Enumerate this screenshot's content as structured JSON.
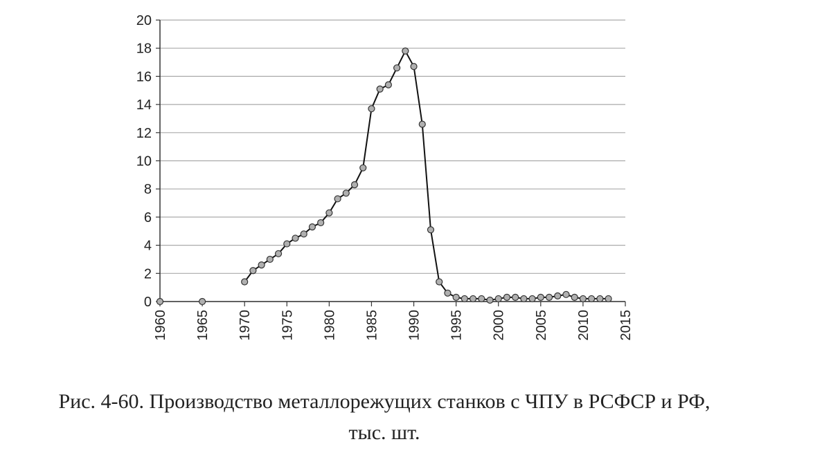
{
  "chart_data": {
    "type": "line",
    "title": [
      "Рис. 4-60. Производство металлорежущих станков с ЧПУ в РСФСР и РФ,",
      "тыс. шт."
    ],
    "x": [
      1960,
      1961,
      1962,
      1963,
      1964,
      1965,
      1966,
      1967,
      1968,
      1969,
      1970,
      1971,
      1972,
      1973,
      1974,
      1975,
      1976,
      1977,
      1978,
      1979,
      1980,
      1981,
      1982,
      1983,
      1984,
      1985,
      1986,
      1987,
      1988,
      1989,
      1990,
      1991,
      1992,
      1993,
      1994,
      1995,
      1996,
      1997,
      1998,
      1999,
      2000,
      2001,
      2002,
      2003,
      2004,
      2005,
      2006,
      2007,
      2008,
      2009,
      2010,
      2011,
      2012,
      2013
    ],
    "values": [
      0,
      null,
      null,
      null,
      null,
      0,
      null,
      null,
      null,
      null,
      1.4,
      2.2,
      2.6,
      3.0,
      3.4,
      4.1,
      4.5,
      4.8,
      5.3,
      5.6,
      6.3,
      7.3,
      7.7,
      8.3,
      9.5,
      13.7,
      15.1,
      15.4,
      16.6,
      17.8,
      16.7,
      12.6,
      5.1,
      1.4,
      0.6,
      0.3,
      0.2,
      0.2,
      0.2,
      0.1,
      0.2,
      0.3,
      0.3,
      0.2,
      0.2,
      0.3,
      0.3,
      0.4,
      0.5,
      0.3,
      0.2,
      0.2,
      0.2,
      0.2
    ],
    "color": "#111111",
    "marker_color": "#b0b0b0",
    "xlim": [
      1960,
      2015
    ],
    "xticks": [
      1960,
      1965,
      1970,
      1975,
      1980,
      1985,
      1990,
      1995,
      2000,
      2005,
      2010,
      2015
    ],
    "ylim": [
      0,
      20
    ],
    "yticks": [
      0,
      2,
      4,
      6,
      8,
      10,
      12,
      14,
      16,
      18,
      20
    ],
    "grid": true
  }
}
